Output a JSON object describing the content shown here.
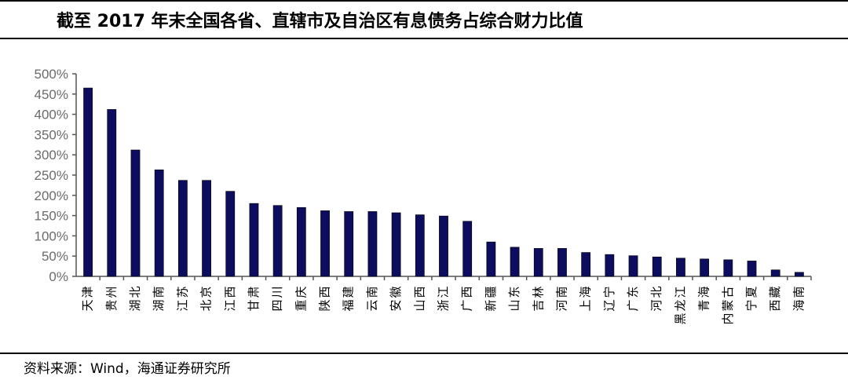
{
  "header": {
    "title": "截至 2017 年末全国各省、直辖市及自治区有息债务占综合财力比值"
  },
  "footer": {
    "source": "资料来源：Wind，海通证券研究所"
  },
  "colors": {
    "bar": "#0d0d5f",
    "axis": "#555555",
    "text": "#000000"
  },
  "chart_data": {
    "type": "bar",
    "title": "截至 2017 年末全国各省、直辖市及自治区有息债务占综合财力比值",
    "xlabel": "",
    "ylabel": "",
    "ylim": [
      0,
      5
    ],
    "yticks": [
      0,
      0.5,
      1,
      1.5,
      2,
      2.5,
      3,
      3.5,
      4,
      4.5,
      5
    ],
    "ytick_labels": [
      "0%",
      "50%",
      "100%",
      "150%",
      "200%",
      "250%",
      "300%",
      "350%",
      "400%",
      "450%",
      "500%"
    ],
    "grid": false,
    "categories": [
      "天津",
      "贵州",
      "湖北",
      "湖南",
      "江苏",
      "北京",
      "江西",
      "甘肃",
      "四川",
      "重庆",
      "陕西",
      "福建",
      "云南",
      "安徽",
      "山西",
      "浙江",
      "广西",
      "新疆",
      "山东",
      "吉林",
      "河南",
      "上海",
      "辽宁",
      "广东",
      "河北",
      "黑龙江",
      "青海",
      "内蒙古",
      "宁夏",
      "西藏",
      "海南"
    ],
    "values": [
      4.65,
      4.12,
      3.12,
      2.63,
      2.37,
      2.37,
      2.1,
      1.8,
      1.75,
      1.7,
      1.62,
      1.6,
      1.6,
      1.57,
      1.52,
      1.49,
      1.36,
      0.85,
      0.72,
      0.69,
      0.69,
      0.59,
      0.54,
      0.51,
      0.48,
      0.45,
      0.43,
      0.41,
      0.38,
      0.16,
      0.1
    ]
  }
}
